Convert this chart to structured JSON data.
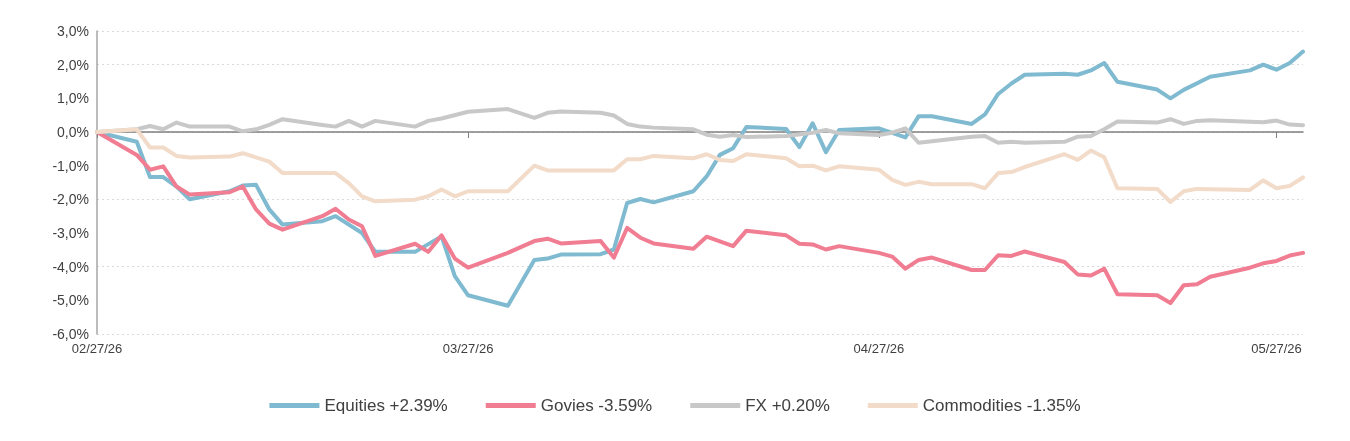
{
  "chart_data": {
    "type": "line",
    "ylim": [
      -6,
      3
    ],
    "yticks": [
      {
        "value": 3,
        "label": "3,0%"
      },
      {
        "value": 2,
        "label": "2,0%"
      },
      {
        "value": 1,
        "label": "1,0%"
      },
      {
        "value": 0,
        "label": "0,0%"
      },
      {
        "value": -1,
        "label": "-1,0%"
      },
      {
        "value": -2,
        "label": "-2,0%"
      },
      {
        "value": -3,
        "label": "-3,0%"
      },
      {
        "value": -4,
        "label": "-4,0%"
      },
      {
        "value": -5,
        "label": "-5,0%"
      },
      {
        "value": -6,
        "label": "-6,0%"
      }
    ],
    "xlim": [
      "2026-02-27",
      "2026-05-29"
    ],
    "xticks": [
      {
        "value": "2026-02-27",
        "label": "02/27/26"
      },
      {
        "value": "2026-03-27",
        "label": "03/27/26"
      },
      {
        "value": "2026-04-27",
        "label": "04/27/26"
      },
      {
        "value": "2026-05-27",
        "label": "05/27/26"
      }
    ],
    "grid": "y",
    "legend": "bottom",
    "marker": "none",
    "line_style": "solid",
    "series": [
      {
        "name": "Equities +2.39%",
        "color": "#7fbad0",
        "x": [
          "2026-02-27",
          "2026-03-02",
          "2026-03-03",
          "2026-03-04",
          "2026-03-05",
          "2026-03-06",
          "2026-03-09",
          "2026-03-10",
          "2026-03-11",
          "2026-03-12",
          "2026-03-13",
          "2026-03-16",
          "2026-03-17",
          "2026-03-19",
          "2026-03-20",
          "2026-03-23",
          "2026-03-25",
          "2026-03-26",
          "2026-03-27",
          "2026-03-30",
          "2026-04-01",
          "2026-04-02",
          "2026-04-03",
          "2026-04-06",
          "2026-04-07",
          "2026-04-08",
          "2026-04-09",
          "2026-04-10",
          "2026-04-13",
          "2026-04-14",
          "2026-04-15",
          "2026-04-16",
          "2026-04-17",
          "2026-04-20",
          "2026-04-21",
          "2026-04-22",
          "2026-04-23",
          "2026-04-24",
          "2026-04-27",
          "2026-04-29",
          "2026-04-30",
          "2026-05-01",
          "2026-05-04",
          "2026-05-05",
          "2026-05-06",
          "2026-05-07",
          "2026-05-08",
          "2026-05-11",
          "2026-05-12",
          "2026-05-13",
          "2026-05-14",
          "2026-05-15",
          "2026-05-18",
          "2026-05-19",
          "2026-05-20",
          "2026-05-22",
          "2026-05-25",
          "2026-05-26",
          "2026-05-27",
          "2026-05-28",
          "2026-05-29"
        ],
        "values": [
          0,
          -0.29,
          -1.34,
          -1.34,
          -1.62,
          -2.0,
          -1.76,
          -1.59,
          -1.57,
          -2.3,
          -2.75,
          -2.65,
          -2.5,
          -3.0,
          -3.56,
          -3.56,
          -3.1,
          -4.28,
          -4.85,
          -5.16,
          -3.8,
          -3.76,
          -3.64,
          -3.63,
          -3.49,
          -2.11,
          -1.99,
          -2.09,
          -1.76,
          -1.32,
          -0.68,
          -0.48,
          0.15,
          0.09,
          -0.45,
          0.26,
          -0.6,
          0.06,
          0.11,
          -0.16,
          0.47,
          0.47,
          0.24,
          0.52,
          1.13,
          1.44,
          1.7,
          1.73,
          1.7,
          1.83,
          2.05,
          1.49,
          1.26,
          1.0,
          1.25,
          1.64,
          1.83,
          2.0,
          1.85,
          2.05,
          2.39
        ]
      },
      {
        "name": "Govies -3.59%",
        "color": "#f07d91",
        "x": [
          "2026-02-27",
          "2026-03-02",
          "2026-03-03",
          "2026-03-04",
          "2026-03-05",
          "2026-03-06",
          "2026-03-09",
          "2026-03-10",
          "2026-03-11",
          "2026-03-12",
          "2026-03-13",
          "2026-03-16",
          "2026-03-17",
          "2026-03-18",
          "2026-03-19",
          "2026-03-20",
          "2026-03-23",
          "2026-03-24",
          "2026-03-25",
          "2026-03-26",
          "2026-03-27",
          "2026-03-30",
          "2026-04-01",
          "2026-04-02",
          "2026-04-03",
          "2026-04-06",
          "2026-04-07",
          "2026-04-08",
          "2026-04-09",
          "2026-04-10",
          "2026-04-13",
          "2026-04-14",
          "2026-04-16",
          "2026-04-17",
          "2026-04-20",
          "2026-04-21",
          "2026-04-22",
          "2026-04-23",
          "2026-04-24",
          "2026-04-27",
          "2026-04-28",
          "2026-04-29",
          "2026-04-30",
          "2026-05-01",
          "2026-05-04",
          "2026-05-05",
          "2026-05-06",
          "2026-05-07",
          "2026-05-08",
          "2026-05-11",
          "2026-05-12",
          "2026-05-13",
          "2026-05-14",
          "2026-05-15",
          "2026-05-18",
          "2026-05-19",
          "2026-05-20",
          "2026-05-21",
          "2026-05-22",
          "2026-05-25",
          "2026-05-26",
          "2026-05-27",
          "2026-05-28",
          "2026-05-29"
        ],
        "values": [
          0,
          -0.68,
          -1.12,
          -1.02,
          -1.62,
          -1.86,
          -1.79,
          -1.62,
          -2.3,
          -2.72,
          -2.9,
          -2.5,
          -2.28,
          -2.6,
          -2.8,
          -3.68,
          -3.32,
          -3.56,
          -3.07,
          -3.76,
          -4.03,
          -3.59,
          -3.24,
          -3.17,
          -3.31,
          -3.24,
          -3.73,
          -2.85,
          -3.14,
          -3.31,
          -3.47,
          -3.11,
          -3.39,
          -2.93,
          -3.07,
          -3.32,
          -3.34,
          -3.49,
          -3.39,
          -3.59,
          -3.7,
          -4.06,
          -3.8,
          -3.73,
          -4.1,
          -4.1,
          -3.66,
          -3.68,
          -3.55,
          -3.86,
          -4.23,
          -4.26,
          -4.06,
          -4.82,
          -4.85,
          -5.08,
          -4.55,
          -4.52,
          -4.3,
          -4.03,
          -3.9,
          -3.83,
          -3.67,
          -3.59
        ]
      },
      {
        "name": "FX +0.20%",
        "color": "#c8c8c8",
        "x": [
          "2026-02-27",
          "2026-03-02",
          "2026-03-03",
          "2026-03-04",
          "2026-03-05",
          "2026-03-06",
          "2026-03-09",
          "2026-03-10",
          "2026-03-11",
          "2026-03-12",
          "2026-03-13",
          "2026-03-16",
          "2026-03-17",
          "2026-03-18",
          "2026-03-19",
          "2026-03-20",
          "2026-03-23",
          "2026-03-24",
          "2026-03-25",
          "2026-03-27",
          "2026-03-30",
          "2026-04-01",
          "2026-04-02",
          "2026-04-03",
          "2026-04-06",
          "2026-04-07",
          "2026-04-08",
          "2026-04-09",
          "2026-04-10",
          "2026-04-13",
          "2026-04-14",
          "2026-04-15",
          "2026-04-16",
          "2026-04-17",
          "2026-04-20",
          "2026-04-22",
          "2026-04-23",
          "2026-04-24",
          "2026-04-27",
          "2026-04-28",
          "2026-04-29",
          "2026-04-30",
          "2026-05-04",
          "2026-05-05",
          "2026-05-06",
          "2026-05-07",
          "2026-05-08",
          "2026-05-11",
          "2026-05-12",
          "2026-05-13",
          "2026-05-14",
          "2026-05-15",
          "2026-05-18",
          "2026-05-19",
          "2026-05-20",
          "2026-05-21",
          "2026-05-22",
          "2026-05-26",
          "2026-05-27",
          "2026-05-28",
          "2026-05-29"
        ],
        "values": [
          0,
          0.08,
          0.18,
          0.08,
          0.28,
          0.16,
          0.16,
          0.02,
          0.08,
          0.21,
          0.38,
          0.21,
          0.16,
          0.33,
          0.16,
          0.33,
          0.16,
          0.33,
          0.4,
          0.6,
          0.68,
          0.42,
          0.57,
          0.61,
          0.57,
          0.49,
          0.24,
          0.16,
          0.13,
          0.08,
          -0.08,
          -0.14,
          -0.09,
          -0.15,
          -0.12,
          -0.02,
          0.06,
          -0.04,
          -0.09,
          -0.02,
          0.11,
          -0.32,
          -0.14,
          -0.12,
          -0.32,
          -0.29,
          -0.32,
          -0.29,
          -0.14,
          -0.12,
          0.08,
          0.31,
          0.28,
          0.38,
          0.24,
          0.33,
          0.35,
          0.29,
          0.34,
          0.22,
          0.2
        ]
      },
      {
        "name": "Commodities -1.35%",
        "color": "#f2dbc9",
        "x": [
          "2026-02-27",
          "2026-03-02",
          "2026-03-03",
          "2026-03-04",
          "2026-03-05",
          "2026-03-06",
          "2026-03-09",
          "2026-03-10",
          "2026-03-12",
          "2026-03-13",
          "2026-03-17",
          "2026-03-18",
          "2026-03-19",
          "2026-03-20",
          "2026-03-23",
          "2026-03-24",
          "2026-03-25",
          "2026-03-26",
          "2026-03-27",
          "2026-03-30",
          "2026-04-01",
          "2026-04-02",
          "2026-04-07",
          "2026-04-08",
          "2026-04-09",
          "2026-04-10",
          "2026-04-13",
          "2026-04-14",
          "2026-04-15",
          "2026-04-16",
          "2026-04-17",
          "2026-04-20",
          "2026-04-21",
          "2026-04-22",
          "2026-04-23",
          "2026-04-24",
          "2026-04-27",
          "2026-04-28",
          "2026-04-29",
          "2026-04-30",
          "2026-05-01",
          "2026-05-04",
          "2026-05-05",
          "2026-05-06",
          "2026-05-07",
          "2026-05-08",
          "2026-05-11",
          "2026-05-12",
          "2026-05-13",
          "2026-05-14",
          "2026-05-15",
          "2026-05-18",
          "2026-05-19",
          "2026-05-20",
          "2026-05-21",
          "2026-05-25",
          "2026-05-26",
          "2026-05-27",
          "2026-05-28",
          "2026-05-29"
        ],
        "values": [
          0,
          0.08,
          -0.46,
          -0.46,
          -0.71,
          -0.76,
          -0.73,
          -0.63,
          -0.88,
          -1.22,
          -1.22,
          -1.52,
          -1.91,
          -2.06,
          -2.01,
          -1.91,
          -1.71,
          -1.91,
          -1.76,
          -1.76,
          -1.0,
          -1.14,
          -1.14,
          -0.81,
          -0.81,
          -0.71,
          -0.78,
          -0.66,
          -0.83,
          -0.86,
          -0.66,
          -0.78,
          -1.02,
          -1.0,
          -1.14,
          -1.02,
          -1.12,
          -1.42,
          -1.57,
          -1.48,
          -1.55,
          -1.55,
          -1.67,
          -1.22,
          -1.19,
          -1.04,
          -0.66,
          -0.83,
          -0.55,
          -0.75,
          -1.67,
          -1.69,
          -2.08,
          -1.76,
          -1.69,
          -1.72,
          -1.44,
          -1.67,
          -1.6,
          -1.35
        ]
      }
    ]
  }
}
